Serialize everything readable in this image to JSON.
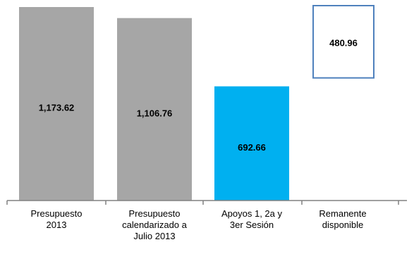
{
  "chart_data": {
    "type": "bar",
    "categories": [
      "Presupuesto 2013",
      "Presupuesto calendarizado a Julio 2013",
      "Apoyos 1, 2a y 3er Sesión",
      "Remanente disponible"
    ],
    "category_lines": [
      [
        "Presupuesto",
        "2013"
      ],
      [
        "Presupuesto",
        "calendarizado a",
        "Julio 2013"
      ],
      [
        "Apoyos 1, 2a y",
        "3er Sesión"
      ],
      [
        "Remanente",
        "disponible"
      ]
    ],
    "values": [
      1173.62,
      1106.76,
      692.66,
      480.96
    ],
    "value_labels": [
      "1,173.62",
      "1,106.76",
      "692.66",
      "480.96"
    ],
    "bar_styles": [
      "solid",
      "solid",
      "solid",
      "floating-outline"
    ],
    "colors": [
      "#a6a6a6",
      "#a6a6a6",
      "#00b0f0",
      "#ffffff"
    ],
    "outline_color": "#4f81bd",
    "ylim": [
      0,
      1173.62
    ],
    "title": "",
    "xlabel": "",
    "ylabel": "",
    "grid": false,
    "legend": "none"
  }
}
